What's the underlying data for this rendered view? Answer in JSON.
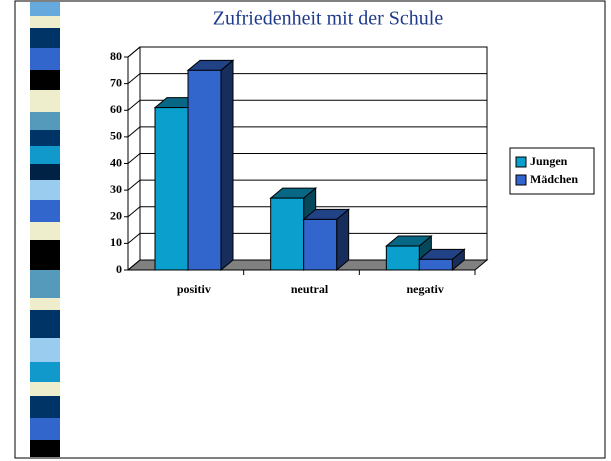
{
  "chart_data": {
    "type": "bar3d",
    "title": "Zufriedenheit mit der Schule",
    "categories": [
      "positiv",
      "neutral",
      "negativ"
    ],
    "series": [
      {
        "name": "Jungen",
        "color": "#0a9fcc",
        "values": [
          61,
          27,
          9
        ]
      },
      {
        "name": "Mädchen",
        "color": "#3366cc",
        "values": [
          75,
          19,
          4
        ]
      }
    ],
    "ylim": [
      0,
      80
    ],
    "yticks": [
      0,
      10,
      20,
      30,
      40,
      50,
      60,
      70,
      80
    ],
    "grid": true,
    "legend": "right"
  }
}
